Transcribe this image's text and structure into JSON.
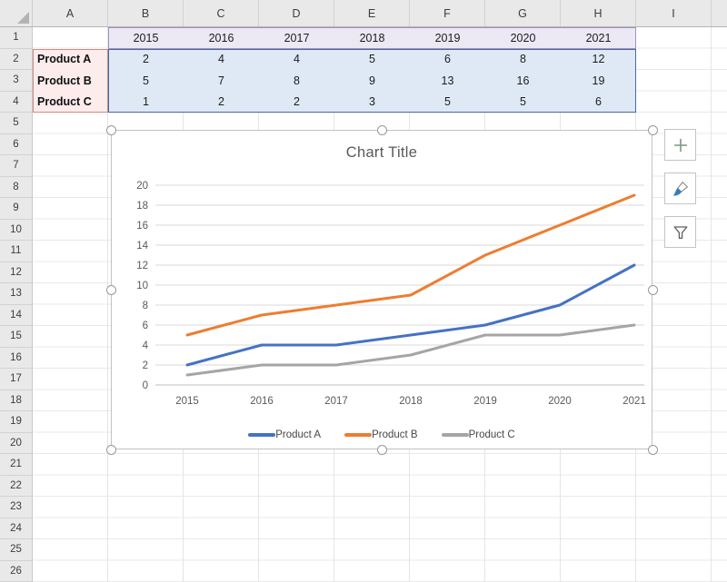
{
  "sheet": {
    "column_headers": [
      "A",
      "B",
      "C",
      "D",
      "E",
      "F",
      "G",
      "H",
      "I"
    ],
    "row_headers": [
      "1",
      "2",
      "3",
      "4",
      "5",
      "6",
      "7",
      "8",
      "9",
      "10",
      "11",
      "12",
      "13",
      "14",
      "15",
      "16",
      "17",
      "18",
      "19",
      "20",
      "21",
      "22",
      "23",
      "24",
      "25",
      "26"
    ],
    "year_row": [
      "2015",
      "2016",
      "2017",
      "2018",
      "2019",
      "2020",
      "2021"
    ],
    "product_rows": [
      {
        "label": "Product A",
        "values": [
          "2",
          "4",
          "4",
          "5",
          "6",
          "8",
          "12"
        ]
      },
      {
        "label": "Product B",
        "values": [
          "5",
          "7",
          "8",
          "9",
          "13",
          "16",
          "19"
        ]
      },
      {
        "label": "Product C",
        "values": [
          "1",
          "2",
          "2",
          "3",
          "5",
          "5",
          "6"
        ]
      }
    ],
    "colors": {
      "category_fill": "#ece8f4",
      "category_border": "#a192c1",
      "series_name_fill": "#fcecec",
      "series_name_border": "#d08a85",
      "values_fill": "#dfe9f5",
      "values_border": "#47689e"
    }
  },
  "chart_data": {
    "type": "line",
    "title": "Chart Title",
    "categories": [
      "2015",
      "2016",
      "2017",
      "2018",
      "2019",
      "2020",
      "2021"
    ],
    "series": [
      {
        "name": "Product A",
        "color": "#4472c4",
        "values": [
          2,
          4,
          4,
          5,
          6,
          8,
          12
        ]
      },
      {
        "name": "Product B",
        "color": "#ed7d31",
        "values": [
          5,
          7,
          8,
          9,
          13,
          16,
          19
        ]
      },
      {
        "name": "Product C",
        "color": "#a5a5a5",
        "values": [
          1,
          2,
          2,
          3,
          5,
          5,
          6
        ]
      }
    ],
    "ylim": [
      0,
      20
    ],
    "ytick_step": 2,
    "grid": true,
    "legend_position": "bottom",
    "axis_label_color": "#595959",
    "gridline_color": "#d9d9d9",
    "axis_line_color": "#bfbfbf"
  },
  "chart_tools": [
    {
      "label": "Chart Elements",
      "icon": "plus-icon"
    },
    {
      "label": "Chart Styles",
      "icon": "paintbrush-icon"
    },
    {
      "label": "Chart Filters",
      "icon": "funnel-icon"
    }
  ]
}
